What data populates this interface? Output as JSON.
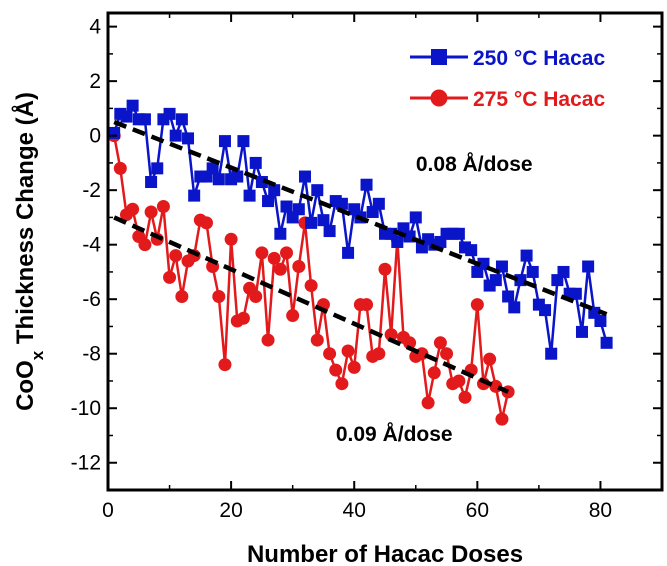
{
  "chart_data": {
    "type": "line",
    "xlabel": "Number of Hacac Doses",
    "ylabel_main": "CoO",
    "ylabel_sub": "x",
    "ylabel_rest": " Thickness Change (Å)",
    "xlim": [
      0,
      90
    ],
    "ylim": [
      -13,
      4.5
    ],
    "xticks": [
      0,
      20,
      40,
      60,
      80
    ],
    "yticks": [
      4,
      2,
      0,
      -2,
      -4,
      -6,
      -8,
      -10,
      -12
    ],
    "grid": false,
    "legend_position": "top-right",
    "series": [
      {
        "name": "250 °C Hacac",
        "color": "#0a14c8",
        "marker": "square",
        "x": [
          1,
          2,
          3,
          4,
          5,
          6,
          7,
          8,
          9,
          10,
          11,
          12,
          13,
          14,
          15,
          16,
          17,
          18,
          19,
          20,
          21,
          22,
          23,
          24,
          25,
          26,
          27,
          28,
          29,
          30,
          31,
          32,
          33,
          34,
          35,
          36,
          37,
          38,
          39,
          40,
          41,
          42,
          43,
          44,
          45,
          46,
          47,
          48,
          49,
          50,
          51,
          52,
          53,
          54,
          55,
          56,
          57,
          58,
          59,
          60,
          61,
          62,
          63,
          64,
          65,
          66,
          67,
          68,
          69,
          70,
          71,
          72,
          73,
          74,
          75,
          76,
          77,
          78,
          79,
          80,
          81
        ],
        "y": [
          0.1,
          0.8,
          0.7,
          1.1,
          0.6,
          0.6,
          -1.7,
          -1.2,
          0.6,
          0.8,
          0.0,
          0.6,
          -0.1,
          -2.2,
          -1.5,
          -1.5,
          -1.2,
          -1.6,
          -0.2,
          -1.6,
          -1.5,
          -0.2,
          -2.2,
          -1.0,
          -1.7,
          -2.4,
          -2.0,
          -3.6,
          -2.6,
          -3.0,
          -2.7,
          -1.5,
          -3.2,
          -2.0,
          -3.1,
          -3.5,
          -2.4,
          -2.5,
          -4.3,
          -2.7,
          -3.0,
          -1.8,
          -2.8,
          -2.5,
          -3.6,
          -3.6,
          -3.9,
          -3.4,
          -3.7,
          -3.0,
          -4.1,
          -3.8,
          -4.0,
          -3.9,
          -3.6,
          -3.6,
          -3.6,
          -4.1,
          -4.2,
          -5.0,
          -4.7,
          -5.5,
          -5.3,
          -4.8,
          -5.9,
          -6.3,
          -5.3,
          -4.4,
          -5.0,
          -6.2,
          -6.4,
          -8.0,
          -5.3,
          -5.0,
          -5.8,
          -5.8,
          -7.2,
          -4.8,
          -6.5,
          -6.8,
          -7.6
        ]
      },
      {
        "name": "275 °C Hacac",
        "color": "#e31a1c",
        "marker": "circle",
        "x": [
          1,
          2,
          3,
          4,
          5,
          6,
          7,
          8,
          9,
          10,
          11,
          12,
          13,
          14,
          15,
          16,
          17,
          18,
          19,
          20,
          21,
          22,
          23,
          24,
          25,
          26,
          27,
          28,
          29,
          30,
          31,
          32,
          33,
          34,
          35,
          36,
          37,
          38,
          39,
          40,
          41,
          42,
          43,
          44,
          45,
          46,
          47,
          48,
          49,
          50,
          51,
          52,
          53,
          54,
          55,
          56,
          57,
          58,
          59,
          60,
          61,
          62,
          63,
          64,
          65
        ],
        "y": [
          0.0,
          -1.2,
          -2.9,
          -2.7,
          -3.7,
          -4.0,
          -2.8,
          -3.8,
          -2.6,
          -5.2,
          -4.4,
          -5.9,
          -4.6,
          -4.4,
          -3.1,
          -3.2,
          -4.8,
          -5.9,
          -8.4,
          -3.8,
          -6.8,
          -6.7,
          -5.6,
          -5.9,
          -4.3,
          -7.5,
          -4.5,
          -4.9,
          -4.3,
          -6.6,
          -4.8,
          -3.2,
          -5.5,
          -7.5,
          -6.2,
          -8.0,
          -8.6,
          -9.1,
          -7.9,
          -8.5,
          -6.2,
          -6.2,
          -8.1,
          -8.0,
          -4.9,
          -7.3,
          -3.8,
          -7.4,
          -7.6,
          -8.1,
          -8.0,
          -9.8,
          -8.7,
          -7.6,
          -8.0,
          -9.1,
          -9.0,
          -9.6,
          -8.6,
          -6.2,
          -9.1,
          -8.2,
          -9.2,
          -10.4,
          -9.4
        ]
      }
    ],
    "fit_lines": [
      {
        "label": "0.08 Å/dose",
        "x": [
          1,
          81
        ],
        "y": [
          0.5,
          -6.55
        ]
      },
      {
        "label": "0.09 Å/dose",
        "x": [
          1,
          65
        ],
        "y": [
          -3.0,
          -9.4
        ]
      }
    ],
    "annotations": [
      {
        "text": "0.08 Å/dose",
        "x": 59.5,
        "y": -1.3
      },
      {
        "text": "0.09 Å/dose",
        "x": 46.5,
        "y": -11.2
      }
    ]
  }
}
